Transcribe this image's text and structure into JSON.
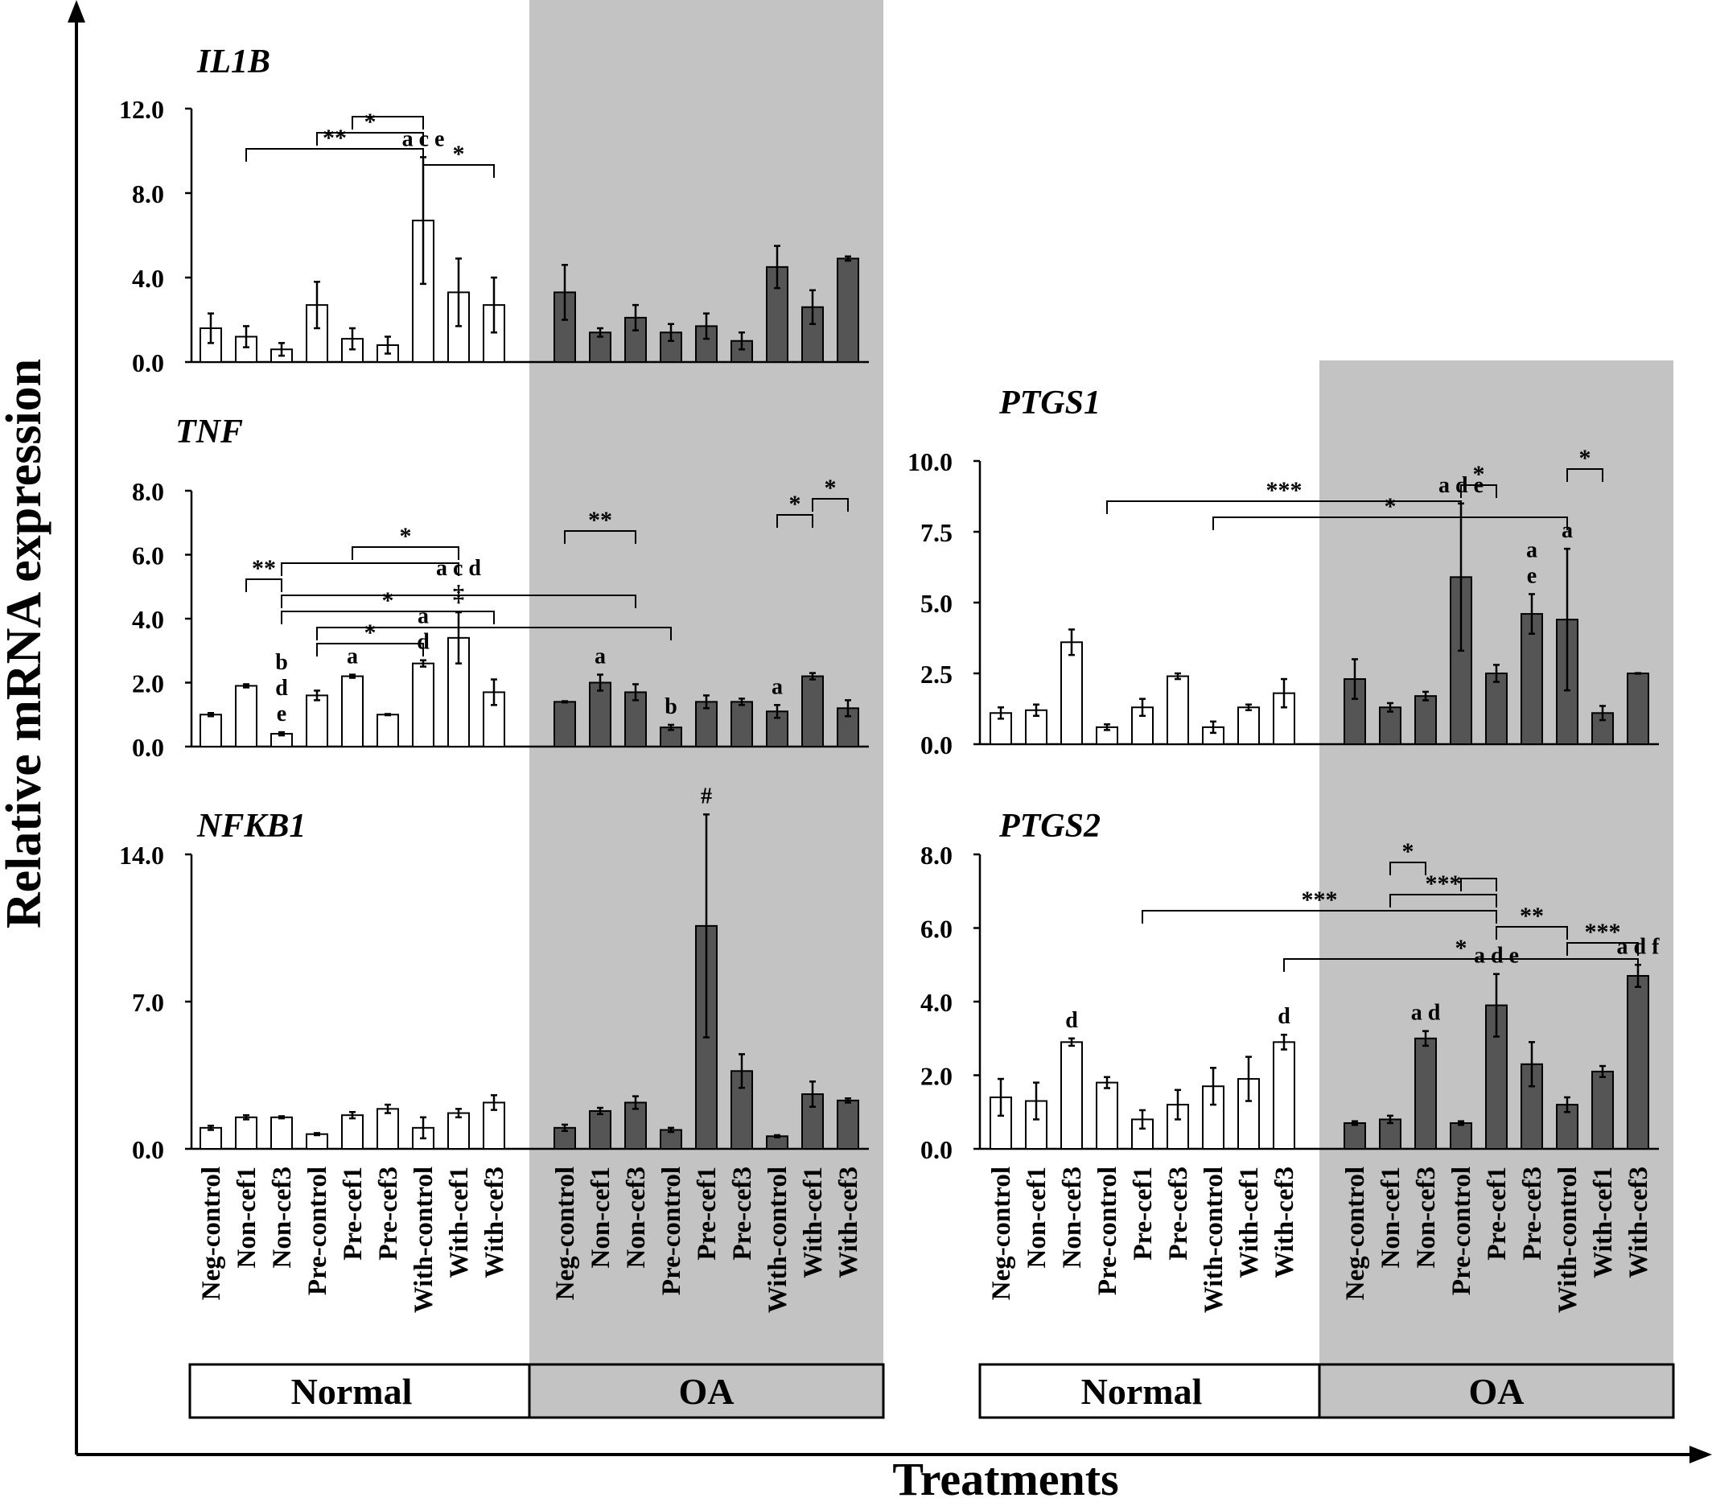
{
  "colors": {
    "normal_fill": "#ffffff",
    "oa_fill": "#555555",
    "oa_background": "#c3c3c3",
    "axis": "#000000"
  },
  "figure": {
    "ylabel": "Relative mRNA expression",
    "xlabel": "Treatments"
  },
  "groups": {
    "normal": "Normal",
    "oa": "OA"
  },
  "categories": [
    "Neg-control",
    "Non-cef1",
    "Non-cef3",
    "Pre-control",
    "Pre-cef1",
    "Pre-cef3",
    "With-control",
    "With-cef1",
    "With-cef3"
  ],
  "chart_data": [
    {
      "type": "bar",
      "title": "IL1B",
      "ylim": [
        0,
        12
      ],
      "yticks": [
        "0.0",
        "4.0",
        "8.0",
        "12.0"
      ],
      "categories": [
        "Neg-control",
        "Non-cef1",
        "Non-cef3",
        "Pre-control",
        "Pre-cef1",
        "Pre-cef3",
        "With-control",
        "With-cef1",
        "With-cef3"
      ],
      "series": [
        {
          "name": "Normal",
          "values": [
            1.6,
            1.2,
            0.6,
            2.7,
            1.1,
            0.8,
            6.7,
            3.3,
            2.7
          ],
          "err": [
            0.7,
            0.5,
            0.3,
            1.1,
            0.5,
            0.4,
            3.0,
            1.6,
            1.3
          ]
        },
        {
          "name": "OA",
          "values": [
            3.3,
            1.4,
            2.1,
            1.4,
            1.7,
            1.0,
            4.5,
            2.6,
            4.9
          ],
          "err": [
            1.3,
            0.2,
            0.6,
            0.4,
            0.6,
            0.4,
            1.0,
            0.8,
            0.1
          ]
        }
      ],
      "letters": [
        {
          "group": "Normal",
          "index": 6,
          "lines": [
            "a c e"
          ]
        }
      ],
      "brackets": [
        {
          "label": "*",
          "from": [
            0,
            6
          ],
          "to": [
            0,
            8
          ]
        },
        {
          "label": "**",
          "from": [
            0,
            1
          ],
          "to": [
            0,
            6
          ]
        },
        {
          "label": "*",
          "from": [
            0,
            3
          ],
          "to": [
            0,
            6
          ]
        },
        {
          "label": "",
          "from": [
            0,
            4
          ],
          "to": [
            0,
            6
          ]
        }
      ]
    },
    {
      "type": "bar",
      "title": "TNF",
      "ylim": [
        0,
        8
      ],
      "yticks": [
        "0.0",
        "2.0",
        "4.0",
        "6.0",
        "8.0"
      ],
      "categories": [
        "Neg-control",
        "Non-cef1",
        "Non-cef3",
        "Pre-control",
        "Pre-cef1",
        "Pre-cef3",
        "With-control",
        "With-cef1",
        "With-cef3"
      ],
      "series": [
        {
          "name": "Normal",
          "values": [
            1.0,
            1.9,
            0.4,
            1.6,
            2.2,
            1.0,
            2.6,
            3.4,
            1.7
          ],
          "err": [
            0.05,
            0.05,
            0.05,
            0.15,
            0.05,
            0.02,
            0.1,
            0.8,
            0.4
          ]
        },
        {
          "name": "OA",
          "values": [
            1.4,
            2.0,
            1.7,
            0.6,
            1.4,
            1.4,
            1.1,
            2.2,
            1.2
          ],
          "err": [
            0.02,
            0.25,
            0.25,
            0.08,
            0.2,
            0.1,
            0.2,
            0.1,
            0.25
          ]
        }
      ],
      "letters": [
        {
          "group": "Normal",
          "index": 2,
          "lines": [
            "b",
            "d",
            "e"
          ]
        },
        {
          "group": "Normal",
          "index": 4,
          "lines": [
            "a"
          ]
        },
        {
          "group": "Normal",
          "index": 6,
          "lines": [
            "a",
            "d"
          ]
        },
        {
          "group": "Normal",
          "index": 7,
          "lines": [
            "a c d",
            "‡"
          ]
        },
        {
          "group": "OA",
          "index": 1,
          "lines": [
            "a"
          ]
        },
        {
          "group": "OA",
          "index": 3,
          "lines": [
            "b"
          ]
        },
        {
          "group": "OA",
          "index": 6,
          "lines": [
            "a"
          ]
        }
      ],
      "brackets": [
        {
          "label": "*",
          "from": [
            0,
            3
          ],
          "to": [
            0,
            6
          ]
        },
        {
          "label": "",
          "from": [
            0,
            3
          ],
          "to": [
            1,
            3
          ]
        },
        {
          "label": "*",
          "from": [
            0,
            2
          ],
          "to": [
            0,
            8
          ]
        },
        {
          "label": "",
          "from": [
            0,
            2
          ],
          "to": [
            1,
            2
          ]
        },
        {
          "label": "**",
          "from": [
            0,
            1
          ],
          "to": [
            0,
            2
          ]
        },
        {
          "label": "",
          "from": [
            0,
            2
          ],
          "to": [
            0,
            7
          ]
        },
        {
          "label": "*",
          "from": [
            0,
            4
          ],
          "to": [
            0,
            7
          ]
        },
        {
          "label": "**",
          "from": [
            1,
            0
          ],
          "to": [
            1,
            2
          ]
        },
        {
          "label": "*",
          "from": [
            1,
            6
          ],
          "to": [
            1,
            7
          ]
        },
        {
          "label": "*",
          "from": [
            1,
            7
          ],
          "to": [
            1,
            8
          ]
        }
      ]
    },
    {
      "type": "bar",
      "title": "NFKB1",
      "ylim": [
        0,
        14
      ],
      "yticks": [
        "0.0",
        "7.0",
        "14.0"
      ],
      "categories": [
        "Neg-control",
        "Non-cef1",
        "Non-cef3",
        "Pre-control",
        "Pre-cef1",
        "Pre-cef3",
        "With-control",
        "With-cef1",
        "With-cef3"
      ],
      "series": [
        {
          "name": "Normal",
          "values": [
            1.0,
            1.5,
            1.5,
            0.7,
            1.6,
            1.9,
            1.0,
            1.7,
            2.2
          ],
          "err": [
            0.1,
            0.1,
            0.05,
            0.05,
            0.15,
            0.2,
            0.5,
            0.2,
            0.35
          ]
        },
        {
          "name": "OA",
          "values": [
            1.0,
            1.8,
            2.2,
            0.9,
            10.6,
            3.7,
            0.6,
            2.6,
            2.3
          ],
          "err": [
            0.15,
            0.15,
            0.3,
            0.1,
            5.3,
            0.8,
            0.05,
            0.6,
            0.1
          ]
        }
      ],
      "letters": [
        {
          "group": "OA",
          "index": 4,
          "lines": [
            "#"
          ]
        }
      ],
      "brackets": []
    },
    {
      "type": "bar",
      "title": "PTGS1",
      "ylim": [
        0,
        10
      ],
      "yticks": [
        "0.0",
        "2.5",
        "5.0",
        "7.5",
        "10.0"
      ],
      "categories": [
        "Neg-control",
        "Non-cef1",
        "Non-cef3",
        "Pre-control",
        "Pre-cef1",
        "Pre-cef3",
        "With-control",
        "With-cef1",
        "With-cef3"
      ],
      "series": [
        {
          "name": "Normal",
          "values": [
            1.1,
            1.2,
            3.6,
            0.6,
            1.3,
            2.4,
            0.6,
            1.3,
            1.8
          ],
          "err": [
            0.2,
            0.2,
            0.45,
            0.1,
            0.3,
            0.1,
            0.2,
            0.1,
            0.5
          ]
        },
        {
          "name": "OA",
          "values": [
            2.3,
            1.3,
            1.7,
            5.9,
            2.5,
            4.6,
            4.4,
            1.1,
            2.5
          ],
          "err": [
            0.7,
            0.15,
            0.15,
            2.6,
            0.3,
            0.7,
            2.5,
            0.25,
            0.01
          ]
        }
      ],
      "letters": [
        {
          "group": "OA",
          "index": 3,
          "lines": [
            "a d e"
          ]
        },
        {
          "group": "OA",
          "index": 5,
          "lines": [
            "a",
            "e"
          ]
        },
        {
          "group": "OA",
          "index": 6,
          "lines": [
            "a"
          ]
        }
      ],
      "brackets": [
        {
          "label": "*",
          "from": [
            0,
            6
          ],
          "to": [
            1,
            6
          ]
        },
        {
          "label": "***",
          "from": [
            0,
            3
          ],
          "to": [
            1,
            3
          ]
        },
        {
          "label": "*",
          "from": [
            1,
            3
          ],
          "to": [
            1,
            4
          ]
        },
        {
          "label": "*",
          "from": [
            1,
            6
          ],
          "to": [
            1,
            7
          ]
        }
      ]
    },
    {
      "type": "bar",
      "title": "PTGS2",
      "ylim": [
        0,
        8
      ],
      "yticks": [
        "0.0",
        "2.0",
        "4.0",
        "6.0",
        "8.0"
      ],
      "categories": [
        "Neg-control",
        "Non-cef1",
        "Non-cef3",
        "Pre-control",
        "Pre-cef1",
        "Pre-cef3",
        "With-control",
        "With-cef1",
        "With-cef3"
      ],
      "series": [
        {
          "name": "Normal",
          "values": [
            1.4,
            1.3,
            2.9,
            1.8,
            0.8,
            1.2,
            1.7,
            1.9,
            2.9
          ],
          "err": [
            0.5,
            0.5,
            0.1,
            0.15,
            0.25,
            0.4,
            0.5,
            0.6,
            0.2
          ]
        },
        {
          "name": "OA",
          "values": [
            0.7,
            0.8,
            3.0,
            0.7,
            3.9,
            2.3,
            1.2,
            2.1,
            4.7
          ],
          "err": [
            0.05,
            0.1,
            0.2,
            0.05,
            0.85,
            0.6,
            0.2,
            0.15,
            0.3
          ]
        }
      ],
      "letters": [
        {
          "group": "Normal",
          "index": 2,
          "lines": [
            "d"
          ]
        },
        {
          "group": "Normal",
          "index": 8,
          "lines": [
            "d"
          ]
        },
        {
          "group": "OA",
          "index": 2,
          "lines": [
            "a d"
          ]
        },
        {
          "group": "OA",
          "index": 4,
          "lines": [
            "a d e"
          ]
        },
        {
          "group": "OA",
          "index": 8,
          "lines": [
            "a d f"
          ]
        }
      ],
      "brackets": [
        {
          "label": "*",
          "from": [
            0,
            8
          ],
          "to": [
            1,
            8
          ]
        },
        {
          "label": "***",
          "from": [
            1,
            6
          ],
          "to": [
            1,
            8
          ]
        },
        {
          "label": "**",
          "from": [
            1,
            4
          ],
          "to": [
            1,
            6
          ]
        },
        {
          "label": "***",
          "from": [
            0,
            4
          ],
          "to": [
            1,
            4
          ]
        },
        {
          "label": "***",
          "from": [
            1,
            1
          ],
          "to": [
            1,
            4
          ]
        },
        {
          "label": "",
          "from": [
            1,
            3
          ],
          "to": [
            1,
            4
          ]
        },
        {
          "label": "*",
          "from": [
            1,
            1
          ],
          "to": [
            1,
            2
          ]
        }
      ]
    }
  ]
}
